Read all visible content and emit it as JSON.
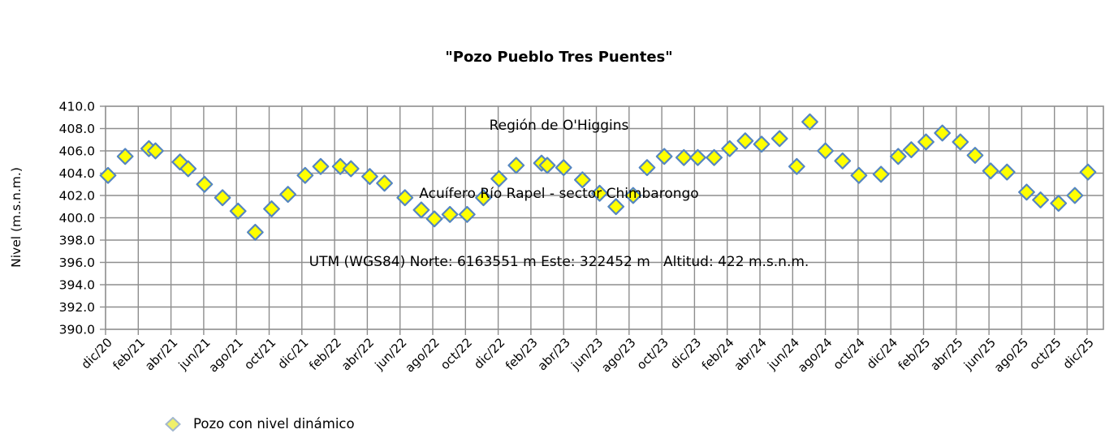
{
  "chart_data": {
    "type": "scatter",
    "title": "\"Pozo Pueblo Tres Puentes\"",
    "subtitle_region": "Región de O'Higgins",
    "subtitle_aquifer": "Acuífero Río Rapel - sector Chimbarongo",
    "subtitle_location": "UTM (WGS84) Norte: 6163551 m Este: 322452 m   Altitud: 422 m.s.n.m.",
    "xlabel": "",
    "ylabel": "Nivel (m.s.n.m.)",
    "ylim": [
      390.0,
      410.0
    ],
    "ytick_step": 2.0,
    "ytick_labels": [
      "410.0",
      "408.0",
      "406.0",
      "404.0",
      "402.0",
      "400.0",
      "398.0",
      "396.0",
      "394.0",
      "392.0",
      "390.0"
    ],
    "xtick_labels": [
      "dic/20",
      "feb/21",
      "abr/21",
      "jun/21",
      "ago/21",
      "oct/21",
      "dic/21",
      "feb/22",
      "abr/22",
      "jun/22",
      "ago/22",
      "oct/22",
      "dic/22",
      "feb/23",
      "abr/23",
      "jun/23",
      "ago/23",
      "oct/23",
      "dic/23",
      "feb/24",
      "abr/24",
      "jun/24",
      "ago/24",
      "oct/24",
      "dic/24",
      "feb/25",
      "abr/25",
      "jun/25",
      "ago/25",
      "oct/25",
      "dic/25"
    ],
    "xtick_month_step": 2,
    "grid": true,
    "legend_position": "bottom-left",
    "series": [
      {
        "name": "Pozo con nivel dinámico",
        "marker": "diamond",
        "x_unit": "months since dic/20",
        "points": [
          [
            "dic/20",
            0.15,
            403.8
          ],
          [
            "ene/21",
            1.2,
            405.5
          ],
          [
            "feb/21",
            2.65,
            406.2
          ],
          [
            "mar/21",
            3.05,
            406.0
          ],
          [
            "abr/21",
            4.55,
            405.0
          ],
          [
            "may/21",
            5.05,
            404.4
          ],
          [
            "jun/21",
            6.05,
            403.0
          ],
          [
            "jul/21",
            7.15,
            401.8
          ],
          [
            "ago/21",
            8.1,
            400.6
          ],
          [
            "sep/21",
            9.15,
            398.7
          ],
          [
            "oct/21",
            10.15,
            400.8
          ],
          [
            "nov/21",
            11.15,
            402.1
          ],
          [
            "dic/21",
            12.2,
            403.8
          ],
          [
            "ene/22",
            13.15,
            404.6
          ],
          [
            "feb/22",
            14.35,
            404.6
          ],
          [
            "mar/22",
            15.0,
            404.4
          ],
          [
            "abr/22",
            16.15,
            403.7
          ],
          [
            "may/22",
            17.05,
            403.1
          ],
          [
            "jun/22",
            18.3,
            401.8
          ],
          [
            "jul/22",
            19.3,
            400.7
          ],
          [
            "ago/22",
            20.1,
            399.9
          ],
          [
            "sep/22",
            21.05,
            400.3
          ],
          [
            "oct/22",
            22.1,
            400.3
          ],
          [
            "nov/22",
            23.1,
            401.8
          ],
          [
            "dic/22",
            24.05,
            403.5
          ],
          [
            "ene/23",
            25.1,
            404.7
          ],
          [
            "feb/23",
            26.65,
            404.9
          ],
          [
            "mar/23",
            27.0,
            404.7
          ],
          [
            "abr/23",
            28.0,
            404.5
          ],
          [
            "may/23",
            29.15,
            403.4
          ],
          [
            "jun/23",
            30.2,
            402.2
          ],
          [
            "jul/23",
            31.2,
            401.0
          ],
          [
            "ago/23",
            32.25,
            402.0
          ],
          [
            "sep/23",
            33.1,
            404.5
          ],
          [
            "oct/23",
            34.15,
            405.5
          ],
          [
            "nov/23",
            35.35,
            405.4
          ],
          [
            "dic/23",
            36.2,
            405.4
          ],
          [
            "ene/24",
            37.2,
            405.4
          ],
          [
            "feb/24",
            38.15,
            406.2
          ],
          [
            "mar/24",
            39.1,
            406.9
          ],
          [
            "abr/24",
            40.1,
            406.6
          ],
          [
            "may/24",
            41.2,
            407.1
          ],
          [
            "jun/24",
            42.25,
            404.6
          ],
          [
            "jul/24",
            43.05,
            408.6
          ],
          [
            "ago/24",
            44.0,
            406.0
          ],
          [
            "sep/24",
            45.05,
            405.1
          ],
          [
            "oct/24",
            46.05,
            403.8
          ],
          [
            "nov/24",
            47.4,
            403.9
          ],
          [
            "dic/24",
            48.45,
            405.5
          ],
          [
            "ene/25",
            49.25,
            406.1
          ],
          [
            "feb/25",
            50.15,
            406.8
          ],
          [
            "mar/25",
            51.15,
            407.6
          ],
          [
            "abr/25",
            52.25,
            406.8
          ],
          [
            "may/25",
            53.15,
            405.6
          ],
          [
            "jun/25",
            54.1,
            404.2
          ],
          [
            "jul/25",
            55.1,
            404.1
          ],
          [
            "ago/25",
            56.3,
            402.3
          ],
          [
            "sep/25",
            57.15,
            401.6
          ],
          [
            "oct/25",
            58.25,
            401.3
          ],
          [
            "nov/25",
            59.25,
            402.0
          ],
          [
            "dic/25",
            60.05,
            404.1
          ]
        ]
      }
    ]
  },
  "legend": {
    "label": "Pozo con nivel dinámico"
  },
  "colors": {
    "marker_fill": "#FFFF00",
    "marker_stroke": "#5586C0",
    "legend_marker_fill": "#F0F06A",
    "legend_marker_stroke": "#A3B8CE",
    "gridline": "#8E8E8E",
    "text": "#000000",
    "background": "#FFFFFF"
  }
}
